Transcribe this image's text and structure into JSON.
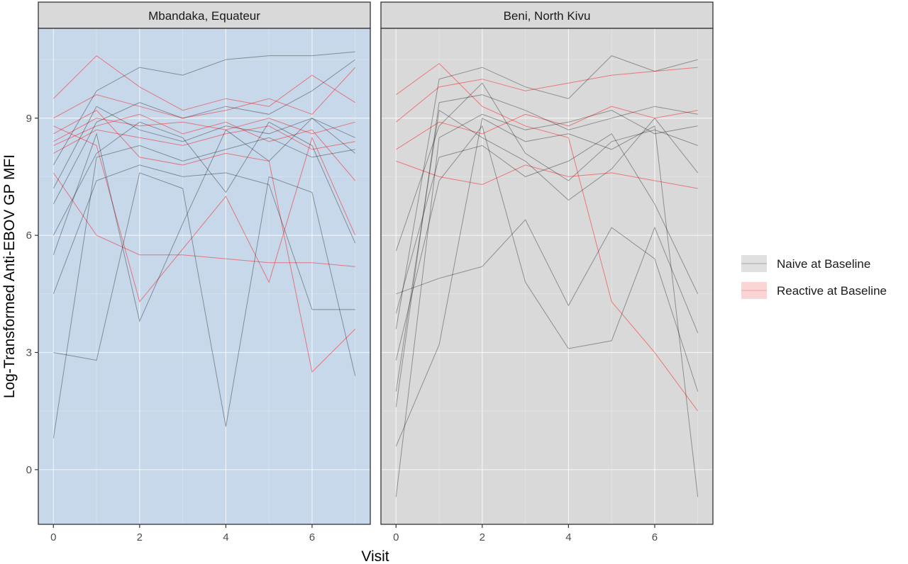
{
  "chart_data": {
    "type": "line",
    "xlabel": "Visit",
    "ylabel": "Log-Transformed Anti-EBOV GP MFI",
    "xlim": [
      -0.35,
      7.35
    ],
    "ylim": [
      -1.4,
      11.3
    ],
    "x_ticks": [
      0,
      2,
      4,
      6
    ],
    "y_ticks": [
      0,
      3,
      6,
      9
    ],
    "grid": true,
    "legend_position": "right",
    "legend": [
      {
        "label": "Naive at Baseline",
        "color": "#000000"
      },
      {
        "label": "Reactive at Baseline",
        "color": "#ff0000"
      }
    ],
    "panels": [
      {
        "strip": "Mbandaka, Equateur",
        "background": "#c6d8ea",
        "series": [
          {
            "group": "reactive",
            "x": [
              0,
              1,
              2,
              3,
              4,
              5,
              6,
              7
            ],
            "y": [
              8.4,
              9.0,
              8.8,
              8.9,
              8.7,
              9.0,
              8.6,
              8.9
            ]
          },
          {
            "group": "reactive",
            "x": [
              0,
              1,
              2,
              3,
              4,
              5,
              6,
              7
            ],
            "y": [
              8.1,
              8.7,
              8.5,
              8.3,
              8.6,
              8.8,
              8.2,
              8.4
            ]
          },
          {
            "group": "reactive",
            "x": [
              0,
              1,
              2,
              3,
              4,
              5,
              6,
              7
            ],
            "y": [
              9.5,
              10.6,
              9.8,
              9.2,
              9.5,
              9.3,
              10.1,
              9.4
            ]
          },
          {
            "group": "reactive",
            "x": [
              0,
              1,
              2,
              3,
              4,
              5,
              6,
              7
            ],
            "y": [
              7.6,
              6.0,
              5.5,
              5.5,
              5.4,
              5.3,
              5.3,
              5.2
            ]
          },
          {
            "group": "reactive",
            "x": [
              0,
              1,
              2,
              4,
              5,
              6,
              7
            ],
            "y": [
              8.8,
              8.3,
              4.3,
              7.0,
              4.8,
              8.5,
              6.0
            ]
          },
          {
            "group": "reactive",
            "x": [
              0,
              1,
              2,
              3,
              4,
              5,
              6,
              7
            ],
            "y": [
              8.6,
              9.2,
              8.0,
              7.8,
              8.1,
              7.9,
              2.5,
              3.6
            ]
          },
          {
            "group": "reactive",
            "x": [
              0,
              1,
              2,
              3,
              4,
              5,
              6,
              7
            ],
            "y": [
              8.3,
              8.8,
              9.1,
              8.6,
              8.9,
              8.4,
              8.7,
              7.4
            ]
          },
          {
            "group": "reactive",
            "x": [
              0,
              1,
              2,
              3,
              4,
              5,
              6,
              7
            ],
            "y": [
              9.0,
              9.6,
              9.3,
              9.0,
              9.2,
              9.5,
              9.1,
              10.3
            ]
          },
          {
            "group": "naive",
            "x": [
              0,
              1,
              2,
              3,
              4,
              5,
              6,
              7
            ],
            "y": [
              0.8,
              8.0,
              8.3,
              7.9,
              8.2,
              8.5,
              8.0,
              8.2
            ]
          },
          {
            "group": "naive",
            "x": [
              0,
              1,
              2,
              3,
              4,
              5,
              6,
              7
            ],
            "y": [
              3.0,
              2.8,
              7.6,
              7.2,
              1.1,
              7.5,
              7.1,
              2.4
            ]
          },
          {
            "group": "naive",
            "x": [
              0,
              1,
              2,
              3,
              4,
              5,
              6,
              7
            ],
            "y": [
              5.5,
              8.6,
              3.8,
              6.3,
              8.7,
              7.9,
              9.0,
              8.5
            ]
          },
          {
            "group": "naive",
            "x": [
              0,
              1,
              2,
              3,
              4,
              5,
              6,
              7
            ],
            "y": [
              6.8,
              8.9,
              9.4,
              9.0,
              9.3,
              9.1,
              9.7,
              10.5
            ]
          },
          {
            "group": "naive",
            "x": [
              0,
              1,
              2,
              3,
              4,
              5,
              6,
              7
            ],
            "y": [
              4.5,
              7.4,
              7.8,
              7.5,
              7.6,
              7.3,
              4.1,
              4.1
            ]
          },
          {
            "group": "naive",
            "x": [
              0,
              1,
              2,
              3,
              4,
              5,
              6,
              7
            ],
            "y": [
              7.2,
              9.3,
              8.7,
              8.4,
              8.8,
              8.6,
              9.0,
              8.1
            ]
          },
          {
            "group": "naive",
            "x": [
              0,
              1,
              2,
              3,
              4,
              5,
              6,
              7
            ],
            "y": [
              6.0,
              8.1,
              8.9,
              8.5,
              7.1,
              8.9,
              8.3,
              5.8
            ]
          },
          {
            "group": "naive",
            "x": [
              0,
              1,
              2,
              3,
              4,
              5,
              6,
              7
            ],
            "y": [
              7.8,
              9.7,
              10.3,
              10.1,
              10.5,
              10.6,
              10.6,
              10.7
            ]
          }
        ]
      },
      {
        "strip": "Beni, North Kivu",
        "background": "#d9d9d9",
        "series": [
          {
            "group": "reactive",
            "x": [
              0,
              1,
              2,
              3,
              4,
              5,
              6,
              7
            ],
            "y": [
              9.6,
              10.4,
              9.3,
              8.8,
              8.5,
              4.3,
              3.0,
              1.5
            ]
          },
          {
            "group": "reactive",
            "x": [
              0,
              1,
              2,
              3,
              4,
              5,
              6,
              7
            ],
            "y": [
              8.2,
              8.9,
              8.6,
              9.1,
              8.8,
              9.3,
              9.0,
              9.2
            ]
          },
          {
            "group": "reactive",
            "x": [
              0,
              1,
              2,
              3,
              4,
              5,
              6,
              7
            ],
            "y": [
              7.9,
              7.5,
              7.3,
              7.8,
              7.5,
              7.6,
              7.4,
              7.2
            ]
          },
          {
            "group": "reactive",
            "x": [
              0,
              1,
              2,
              3,
              4,
              5,
              6,
              7
            ],
            "y": [
              8.9,
              9.8,
              10.0,
              9.7,
              9.9,
              10.1,
              10.2,
              10.3
            ]
          },
          {
            "group": "naive",
            "x": [
              0,
              1,
              2,
              3,
              4,
              5,
              6,
              7
            ],
            "y": [
              -0.7,
              8.5,
              9.1,
              8.7,
              8.9,
              9.2,
              8.6,
              8.8
            ]
          },
          {
            "group": "naive",
            "x": [
              0,
              1,
              2,
              3,
              4,
              5,
              6,
              7
            ],
            "y": [
              0.6,
              3.2,
              9.0,
              8.4,
              8.6,
              8.2,
              8.8,
              -0.7
            ]
          },
          {
            "group": "naive",
            "x": [
              0,
              1,
              2,
              3,
              4,
              5,
              6,
              7
            ],
            "y": [
              1.6,
              9.4,
              9.6,
              9.2,
              8.7,
              9.0,
              9.3,
              9.1
            ]
          },
          {
            "group": "naive",
            "x": [
              0,
              1,
              2,
              3,
              4,
              5,
              6,
              7
            ],
            "y": [
              2.8,
              7.4,
              8.8,
              4.8,
              3.1,
              3.3,
              6.2,
              3.5
            ]
          },
          {
            "group": "naive",
            "x": [
              0,
              1,
              2,
              3,
              4,
              5,
              6,
              7
            ],
            "y": [
              4.5,
              4.9,
              5.2,
              6.4,
              4.2,
              6.2,
              5.4,
              2.0
            ]
          },
          {
            "group": "naive",
            "x": [
              0,
              1,
              2,
              3,
              4,
              5,
              6,
              7
            ],
            "y": [
              3.6,
              10.0,
              10.3,
              9.8,
              9.5,
              10.6,
              10.2,
              10.5
            ]
          },
          {
            "group": "naive",
            "x": [
              0,
              1,
              2,
              3,
              4,
              5,
              6,
              7
            ],
            "y": [
              5.6,
              8.8,
              9.9,
              8.1,
              7.4,
              8.4,
              8.7,
              8.3
            ]
          },
          {
            "group": "naive",
            "x": [
              0,
              1,
              2,
              3,
              4,
              5,
              6,
              7
            ],
            "y": [
              2.0,
              9.2,
              8.5,
              7.9,
              6.9,
              7.7,
              9.0,
              7.6
            ]
          },
          {
            "group": "naive",
            "x": [
              0,
              1,
              2,
              3,
              4,
              5,
              6,
              7
            ],
            "y": [
              4.0,
              8.0,
              8.3,
              7.5,
              7.9,
              8.6,
              6.8,
              4.5
            ]
          }
        ]
      }
    ]
  }
}
